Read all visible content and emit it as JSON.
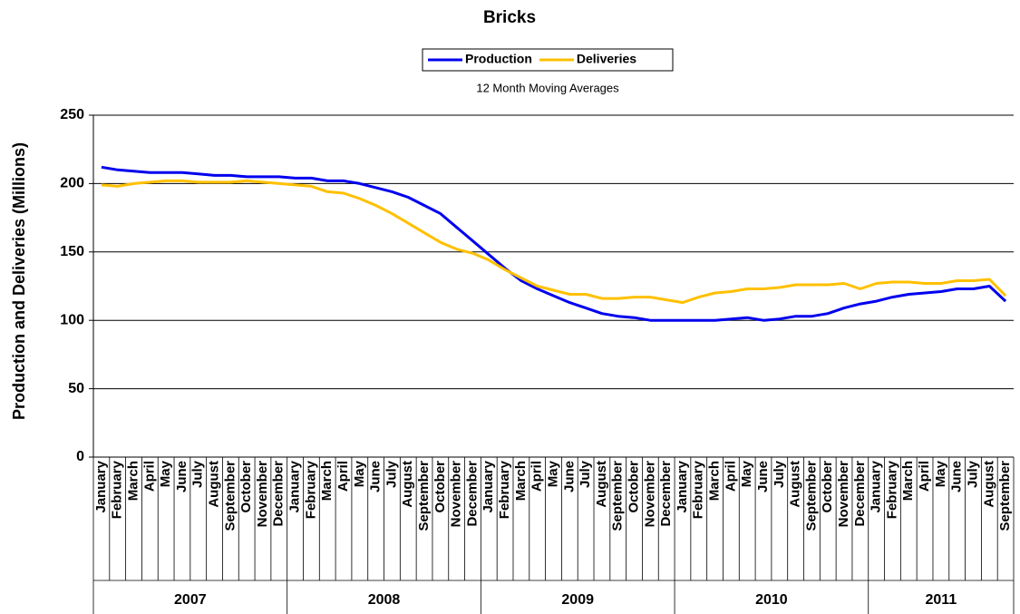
{
  "chart_data": {
    "type": "line",
    "title": "Bricks",
    "subtitle": "12 Month Moving Averages",
    "y_label": "Production and Deliveries (Millions)",
    "categories": [
      "January",
      "February",
      "March",
      "April",
      "May",
      "June",
      "July",
      "August",
      "September",
      "October",
      "November",
      "December",
      "January",
      "February",
      "March",
      "April",
      "May",
      "June",
      "July",
      "August",
      "September",
      "October",
      "November",
      "December",
      "January",
      "February",
      "March",
      "April",
      "May",
      "June",
      "July",
      "August",
      "September",
      "October",
      "November",
      "December",
      "January",
      "February",
      "March",
      "April",
      "May",
      "June",
      "July",
      "August",
      "September",
      "October",
      "November",
      "December",
      "January",
      "February",
      "March",
      "April",
      "May",
      "June",
      "July",
      "August",
      "September"
    ],
    "years": [
      "2007",
      "2008",
      "2009",
      "2010",
      "2011"
    ],
    "series": [
      {
        "name": "Production",
        "color": "#0000ee",
        "values": [
          212,
          210,
          209,
          208,
          208,
          208,
          207,
          206,
          206,
          205,
          205,
          205,
          204,
          204,
          202,
          202,
          200,
          197,
          194,
          190,
          184,
          178,
          168,
          158,
          148,
          138,
          129,
          123,
          118,
          113,
          109,
          105,
          103,
          102,
          100,
          100,
          100,
          100,
          100,
          101,
          102,
          100,
          101,
          103,
          103,
          105,
          109,
          112,
          114,
          117,
          119,
          120,
          121,
          123,
          123,
          125,
          114
        ]
      },
      {
        "name": "Deliveries",
        "color": "#ffc000",
        "values": [
          199,
          198,
          200,
          201,
          202,
          202,
          201,
          201,
          201,
          202,
          201,
          200,
          199,
          198,
          194,
          193,
          189,
          184,
          178,
          171,
          164,
          157,
          152,
          149,
          144,
          137,
          131,
          125,
          122,
          119,
          119,
          116,
          116,
          117,
          117,
          115,
          113,
          117,
          120,
          121,
          123,
          123,
          124,
          126,
          126,
          126,
          127,
          123,
          127,
          128,
          128,
          127,
          127,
          129,
          129,
          130,
          118
        ]
      }
    ],
    "ylim": [
      0,
      250
    ],
    "yticks": [
      0,
      50,
      100,
      150,
      200,
      250
    ],
    "grid": true
  }
}
